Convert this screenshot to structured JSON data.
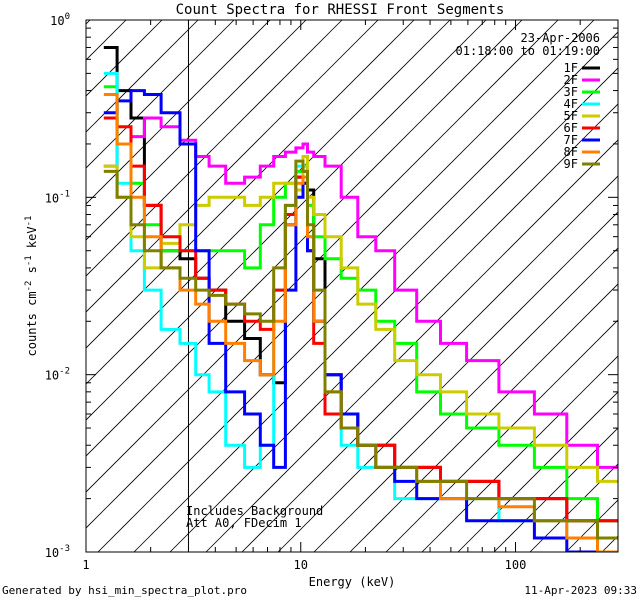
{
  "chart_data": {
    "type": "line",
    "title": "Count Spectra for RHESSI Front Segments",
    "xlabel": "Energy (keV)",
    "ylabel": "counts cm",
    "ylabel_parts": {
      "base": "counts cm",
      "exp1": "-2",
      "mid1": " s",
      "exp2": "-1",
      "mid2": " keV",
      "exp3": "-1"
    },
    "x_scale": "log",
    "y_scale": "log",
    "xlim": [
      1,
      300
    ],
    "ylim": [
      0.001,
      1
    ],
    "x_major_ticks": [
      {
        "v": 1,
        "label": "1"
      },
      {
        "v": 10,
        "label": "10"
      },
      {
        "v": 100,
        "label": "100"
      }
    ],
    "y_major_ticks": [
      {
        "v": 0.001,
        "base": "10",
        "exp": "-3"
      },
      {
        "v": 0.01,
        "base": "10",
        "exp": "-2"
      },
      {
        "v": 0.1,
        "base": "10",
        "exp": "-1"
      },
      {
        "v": 1,
        "base": "10",
        "exp": "0"
      }
    ],
    "shaded_region": {
      "x_from": 1,
      "x_to": 3,
      "style": "diagonal-hatch"
    },
    "date": "23-Apr-2006",
    "time_range": "01:18:00 to 01:19:00",
    "annotations": [
      "Includes Background",
      "Att A0, FDecim 1"
    ],
    "footer_left": "Generated by hsi_min_spectra_plot.pro",
    "footer_right": "11-Apr-2023 09:33",
    "series": [
      {
        "name": "1F",
        "color": "#000000",
        "x": [
          1.3,
          1.5,
          1.75,
          2.0,
          2.5,
          3.0,
          3.5,
          4.0,
          5.0,
          6.0,
          7.0,
          8.0,
          9.0,
          10.0,
          10.5,
          11.0,
          12.0,
          14.0,
          17.0,
          20.0,
          25.0,
          30.0,
          40.0,
          50.0,
          70.0,
          100.0,
          150.0,
          200.0,
          290.0
        ],
        "y": [
          0.7,
          0.4,
          0.28,
          0.09,
          0.05,
          0.045,
          0.035,
          0.03,
          0.02,
          0.016,
          0.01,
          0.009,
          0.07,
          0.13,
          0.14,
          0.11,
          0.045,
          0.01,
          0.006,
          0.004,
          0.004,
          0.003,
          0.003,
          0.0025,
          0.0025,
          0.002,
          0.002,
          0.0015,
          0.0015
        ]
      },
      {
        "name": "2F",
        "color": "#ff00ff",
        "x": [
          1.3,
          1.5,
          1.75,
          2.0,
          2.5,
          3.0,
          3.5,
          4.0,
          5.0,
          6.0,
          7.0,
          8.0,
          9.0,
          10.0,
          10.5,
          11.0,
          12.0,
          14.0,
          17.0,
          20.0,
          25.0,
          30.0,
          40.0,
          50.0,
          70.0,
          100.0,
          150.0,
          200.0,
          290.0
        ],
        "y": [
          0.15,
          0.2,
          0.22,
          0.28,
          0.25,
          0.21,
          0.17,
          0.15,
          0.12,
          0.13,
          0.15,
          0.17,
          0.18,
          0.19,
          0.2,
          0.18,
          0.17,
          0.15,
          0.1,
          0.06,
          0.05,
          0.03,
          0.02,
          0.015,
          0.012,
          0.008,
          0.006,
          0.004,
          0.003
        ]
      },
      {
        "name": "3F",
        "color": "#00ff00",
        "x": [
          1.3,
          1.5,
          1.75,
          2.0,
          2.5,
          3.0,
          3.5,
          4.0,
          5.0,
          6.0,
          7.0,
          8.0,
          9.0,
          10.0,
          10.5,
          11.0,
          12.0,
          14.0,
          17.0,
          20.0,
          25.0,
          30.0,
          40.0,
          50.0,
          70.0,
          100.0,
          150.0,
          200.0,
          290.0
        ],
        "y": [
          0.42,
          0.2,
          0.12,
          0.07,
          0.05,
          0.05,
          0.05,
          0.05,
          0.05,
          0.04,
          0.07,
          0.1,
          0.12,
          0.14,
          0.15,
          0.09,
          0.06,
          0.045,
          0.035,
          0.03,
          0.02,
          0.015,
          0.008,
          0.006,
          0.005,
          0.004,
          0.003,
          0.002,
          0.0015
        ]
      },
      {
        "name": "4F",
        "color": "#00ffff",
        "x": [
          1.3,
          1.5,
          1.75,
          2.0,
          2.5,
          3.0,
          3.5,
          4.0,
          5.0,
          6.0,
          7.0,
          8.0,
          9.0,
          10.0,
          10.5,
          11.0,
          12.0,
          14.0,
          17.0,
          20.0,
          25.0,
          30.0,
          40.0,
          50.0,
          70.0,
          100.0,
          150.0,
          200.0,
          290.0
        ],
        "y": [
          0.5,
          0.12,
          0.05,
          0.03,
          0.018,
          0.015,
          0.01,
          0.008,
          0.004,
          0.003,
          0.004,
          0.03,
          0.09,
          0.15,
          0.15,
          0.06,
          0.02,
          0.006,
          0.004,
          0.003,
          0.003,
          0.002,
          0.002,
          0.002,
          0.002,
          0.0015,
          0.0015,
          0.0012,
          0.001
        ]
      },
      {
        "name": "5F",
        "color": "#cccc00",
        "x": [
          1.3,
          1.5,
          1.75,
          2.0,
          2.5,
          3.0,
          3.5,
          4.0,
          5.0,
          6.0,
          7.0,
          8.0,
          9.0,
          10.0,
          10.5,
          11.0,
          12.0,
          14.0,
          17.0,
          20.0,
          25.0,
          30.0,
          40.0,
          50.0,
          70.0,
          100.0,
          150.0,
          200.0,
          290.0
        ],
        "y": [
          0.15,
          0.1,
          0.06,
          0.04,
          0.055,
          0.07,
          0.09,
          0.1,
          0.1,
          0.09,
          0.1,
          0.12,
          0.12,
          0.11,
          0.17,
          0.1,
          0.08,
          0.06,
          0.04,
          0.025,
          0.018,
          0.012,
          0.01,
          0.008,
          0.006,
          0.005,
          0.004,
          0.003,
          0.0025
        ]
      },
      {
        "name": "6F",
        "color": "#ff0000",
        "x": [
          1.3,
          1.5,
          1.75,
          2.0,
          2.5,
          3.0,
          3.5,
          4.0,
          5.0,
          6.0,
          7.0,
          8.0,
          9.0,
          10.0,
          10.5,
          11.0,
          12.0,
          14.0,
          17.0,
          20.0,
          25.0,
          30.0,
          40.0,
          50.0,
          70.0,
          100.0,
          150.0,
          200.0,
          290.0
        ],
        "y": [
          0.28,
          0.25,
          0.15,
          0.09,
          0.06,
          0.05,
          0.035,
          0.03,
          0.025,
          0.02,
          0.018,
          0.03,
          0.08,
          0.13,
          0.12,
          0.05,
          0.015,
          0.006,
          0.005,
          0.004,
          0.004,
          0.003,
          0.003,
          0.0025,
          0.0025,
          0.002,
          0.002,
          0.0015,
          0.0015
        ]
      },
      {
        "name": "7F",
        "color": "#0000ff",
        "x": [
          1.3,
          1.5,
          1.75,
          2.0,
          2.5,
          3.0,
          3.5,
          4.0,
          5.0,
          6.0,
          7.0,
          8.0,
          9.0,
          10.0,
          10.5,
          11.0,
          12.0,
          14.0,
          17.0,
          20.0,
          25.0,
          30.0,
          40.0,
          50.0,
          70.0,
          100.0,
          150.0,
          200.0,
          290.0
        ],
        "y": [
          0.3,
          0.35,
          0.4,
          0.38,
          0.3,
          0.2,
          0.05,
          0.015,
          0.008,
          0.006,
          0.004,
          0.003,
          0.03,
          0.1,
          0.12,
          0.05,
          0.02,
          0.01,
          0.006,
          0.004,
          0.003,
          0.0025,
          0.002,
          0.002,
          0.0015,
          0.0015,
          0.0012,
          0.001,
          0.001
        ]
      },
      {
        "name": "8F",
        "color": "#ff8000",
        "x": [
          1.3,
          1.5,
          1.75,
          2.0,
          2.5,
          3.0,
          3.5,
          4.0,
          5.0,
          6.0,
          7.0,
          8.0,
          9.0,
          10.0,
          10.5,
          11.0,
          12.0,
          14.0,
          17.0,
          20.0,
          25.0,
          30.0,
          40.0,
          50.0,
          70.0,
          100.0,
          150.0,
          200.0,
          290.0
        ],
        "y": [
          0.38,
          0.2,
          0.1,
          0.06,
          0.04,
          0.03,
          0.025,
          0.02,
          0.015,
          0.012,
          0.01,
          0.02,
          0.07,
          0.12,
          0.13,
          0.06,
          0.02,
          0.008,
          0.005,
          0.004,
          0.003,
          0.003,
          0.0025,
          0.002,
          0.002,
          0.0018,
          0.0015,
          0.0012,
          0.001
        ]
      },
      {
        "name": "9F",
        "color": "#808000",
        "x": [
          1.3,
          1.5,
          1.75,
          2.0,
          2.5,
          3.0,
          3.5,
          4.0,
          5.0,
          6.0,
          7.0,
          8.0,
          9.0,
          10.0,
          10.5,
          11.0,
          12.0,
          14.0,
          17.0,
          20.0,
          25.0,
          30.0,
          40.0,
          50.0,
          70.0,
          100.0,
          150.0,
          200.0,
          290.0
        ],
        "y": [
          0.14,
          0.1,
          0.07,
          0.05,
          0.04,
          0.035,
          0.03,
          0.028,
          0.025,
          0.022,
          0.02,
          0.04,
          0.09,
          0.16,
          0.14,
          0.07,
          0.03,
          0.008,
          0.005,
          0.004,
          0.003,
          0.003,
          0.0025,
          0.0025,
          0.002,
          0.002,
          0.0015,
          0.0015,
          0.0012
        ]
      }
    ]
  }
}
